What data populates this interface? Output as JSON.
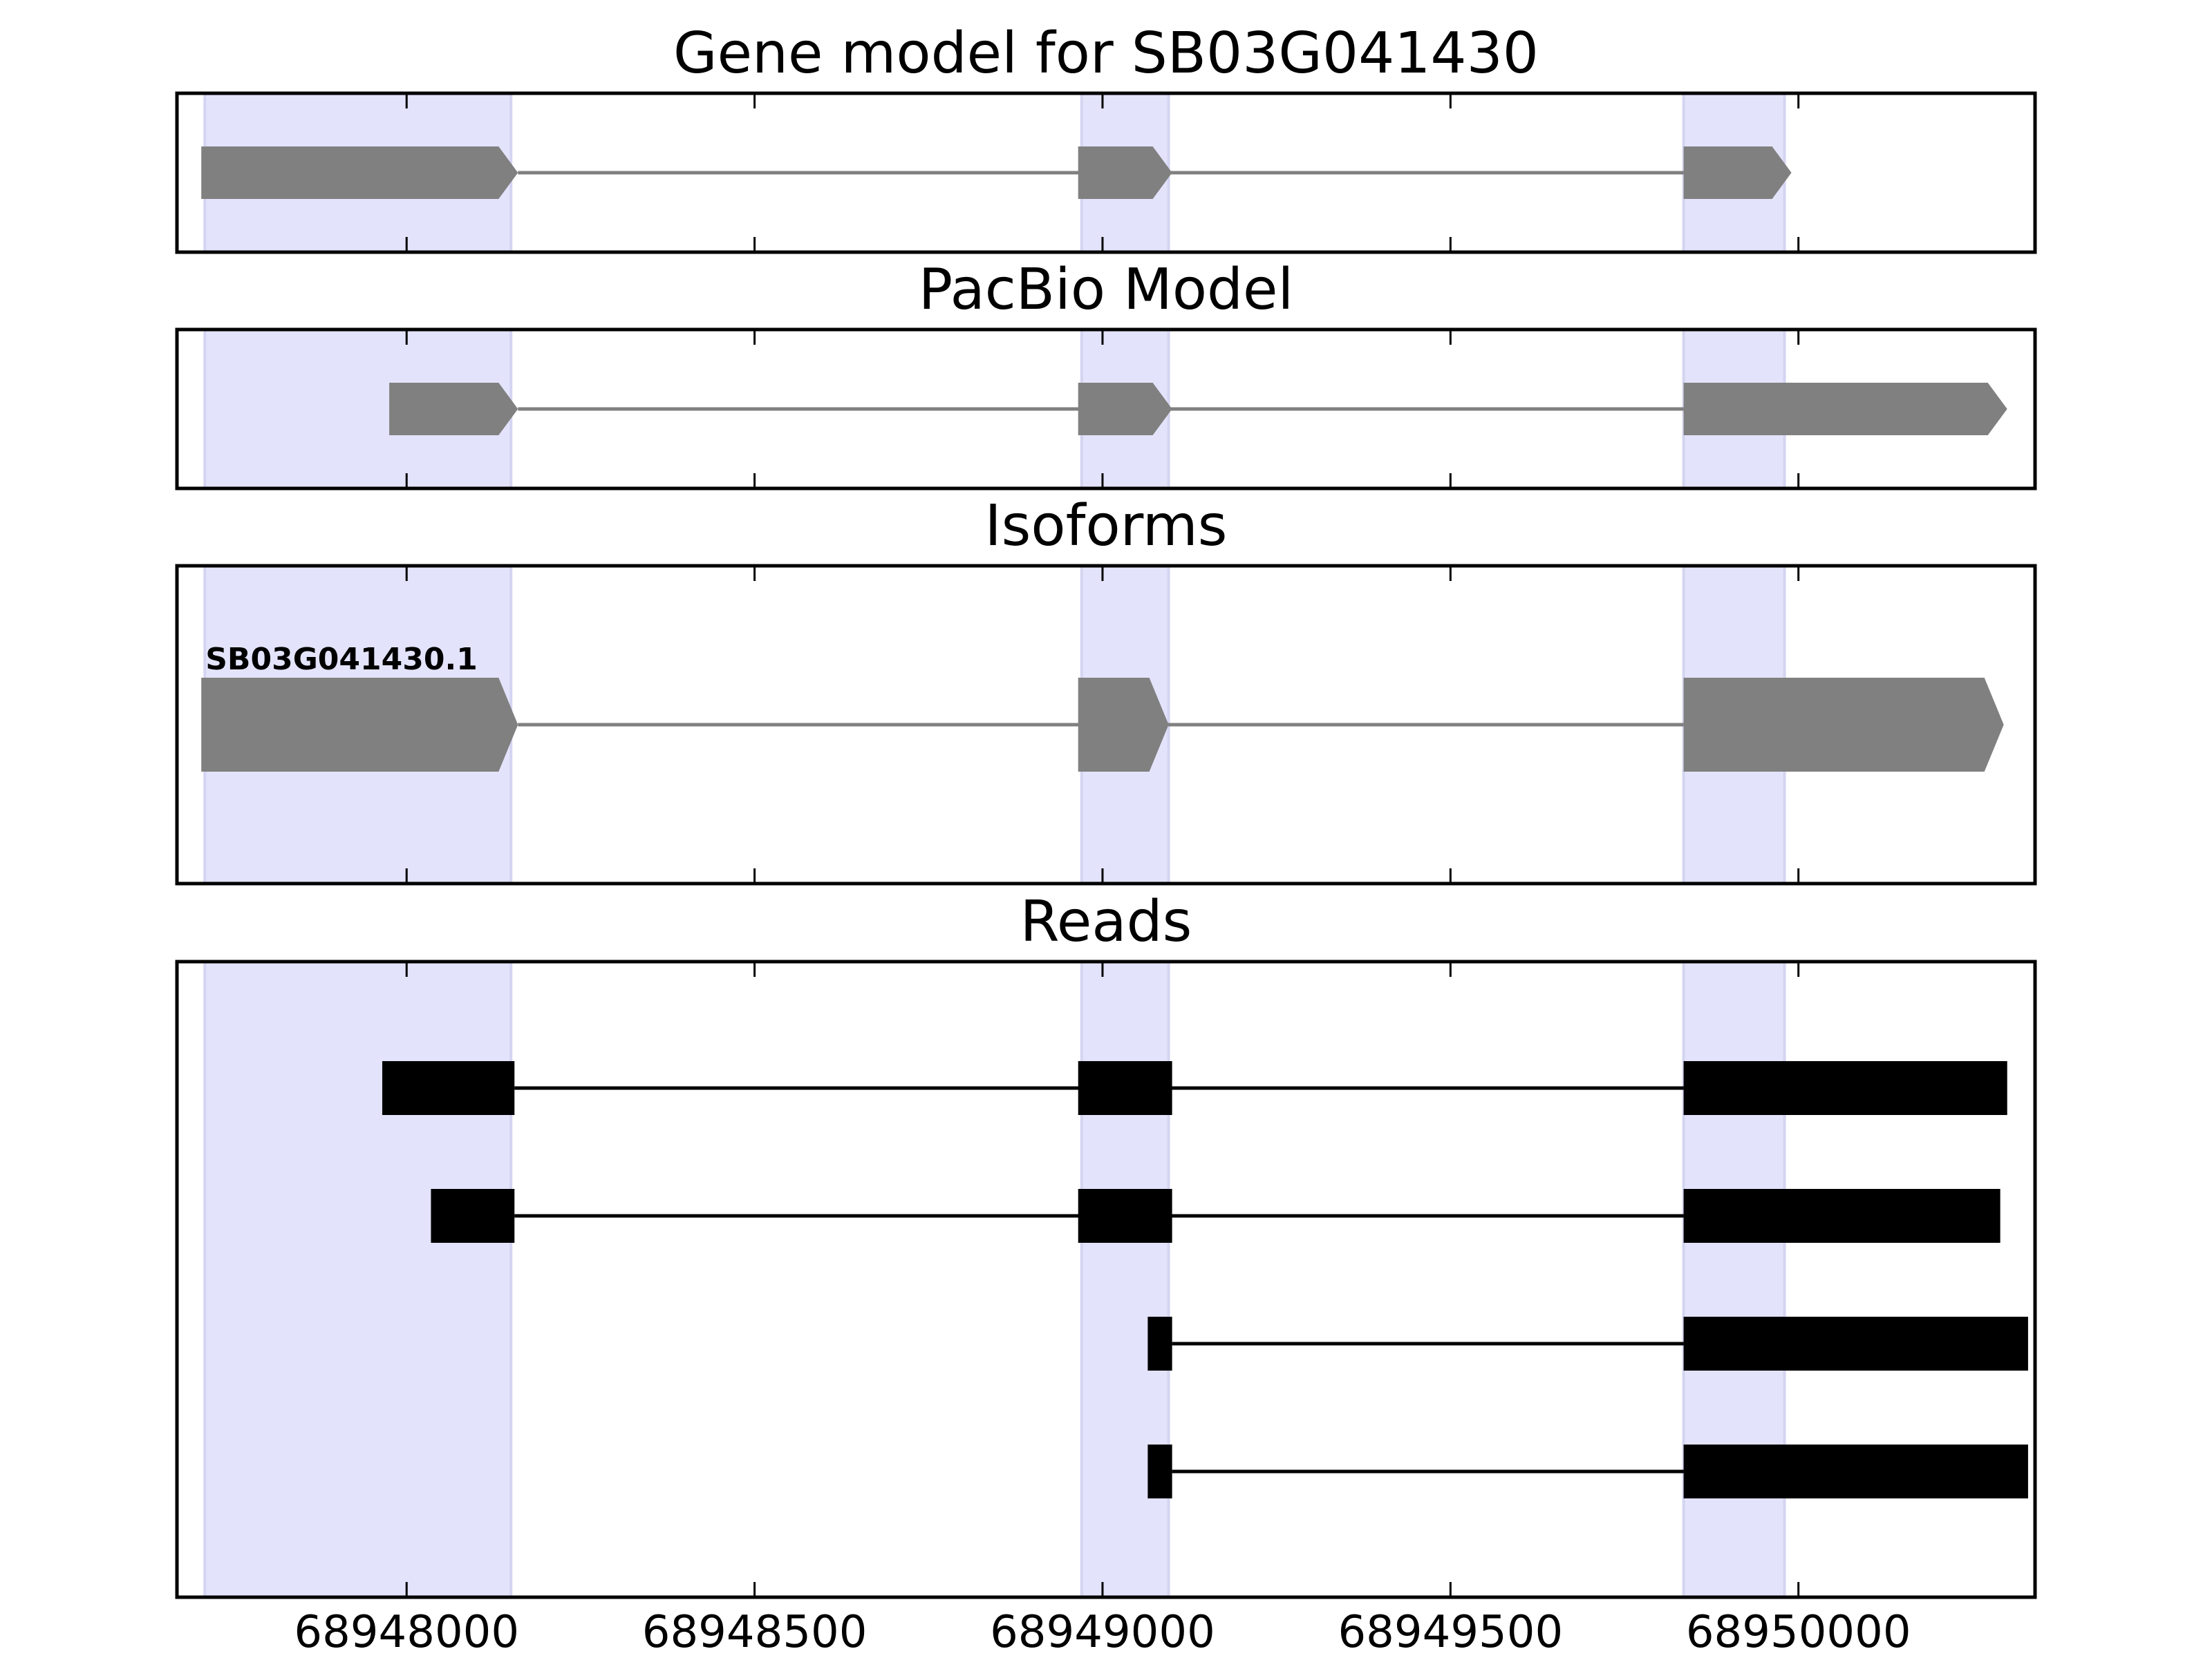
{
  "chart_data": {
    "type": "gene_structure",
    "x_axis": {
      "range": [
        68947670,
        68950340
      ],
      "ticks": [
        68948000,
        68948500,
        68949000,
        68949500,
        68950000
      ],
      "tick_labels": [
        "68948000",
        "68948500",
        "68949000",
        "68949500",
        "68950000"
      ]
    },
    "shaded_exon_regions": [
      [
        68947710,
        68948150
      ],
      [
        68948970,
        68949095
      ],
      [
        68949835,
        68949980
      ]
    ],
    "colors": {
      "shade": "#e3e3fb",
      "model": "#808080",
      "read": "#000000",
      "frame": "#000000"
    },
    "panels": [
      {
        "title": "Gene model for SB03G041430",
        "kind": "model",
        "tracks": [
          {
            "exons": [
              [
                68947705,
                68948160
              ],
              [
                68948965,
                68949100
              ],
              [
                68949835,
                68949990
              ]
            ]
          }
        ]
      },
      {
        "title": "PacBio Model",
        "kind": "model",
        "tracks": [
          {
            "exons": [
              [
                68947975,
                68948160
              ],
              [
                68948965,
                68949100
              ],
              [
                68949835,
                68950300
              ]
            ]
          }
        ]
      },
      {
        "title": "Isoforms",
        "kind": "model",
        "tracks": [
          {
            "label": "SB03G041430.1",
            "exons": [
              [
                68947705,
                68948160
              ],
              [
                68948965,
                68949095
              ],
              [
                68949835,
                68950295
              ]
            ]
          }
        ]
      },
      {
        "title": "Reads",
        "kind": "reads",
        "tracks": [
          {
            "exons": [
              [
                68947965,
                68948155
              ],
              [
                68948965,
                68949100
              ],
              [
                68949835,
                68950300
              ]
            ]
          },
          {
            "exons": [
              [
                68948035,
                68948155
              ],
              [
                68948965,
                68949100
              ],
              [
                68949835,
                68950290
              ]
            ]
          },
          {
            "exons": [
              [
                68949065,
                68949100
              ],
              [
                68949835,
                68950330
              ]
            ]
          },
          {
            "exons": [
              [
                68949065,
                68949100
              ],
              [
                68949835,
                68950330
              ]
            ]
          }
        ]
      }
    ]
  }
}
